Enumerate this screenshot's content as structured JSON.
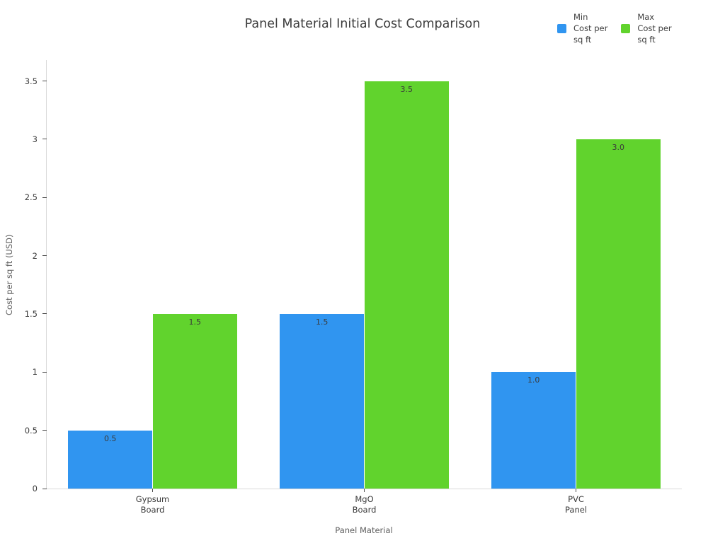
{
  "chart_data": {
    "type": "bar",
    "title": "Panel Material Initial Cost Comparison",
    "xlabel": "Panel Material",
    "ylabel": "Cost per sq ft (USD)",
    "categories": [
      "Gypsum\nBoard",
      "MgO\nBoard",
      "PVC\nPanel"
    ],
    "series": [
      {
        "name": "Min\nCost per\nsq ft",
        "color": "#3095f0",
        "values": [
          0.5,
          1.5,
          1.0
        ],
        "labels": [
          "0.5",
          "1.5",
          "1.0"
        ]
      },
      {
        "name": "Max\nCost per\nsq ft",
        "color": "#61d32d",
        "values": [
          1.5,
          3.5,
          3.0
        ],
        "labels": [
          "1.5",
          "3.5",
          "3.0"
        ]
      }
    ],
    "ylim": [
      0,
      3.68
    ],
    "yticks": {
      "values": [
        0,
        0.5,
        1,
        1.5,
        2,
        2.5,
        3,
        3.5
      ],
      "labels": [
        "0",
        "0.5",
        "1",
        "1.5",
        "2",
        "2.5",
        "3",
        "3.5"
      ]
    },
    "grid": false,
    "legend_position": "top-right",
    "bar_group_fraction": 0.8
  },
  "colors": {
    "min_series": "#3095f0",
    "max_series": "#61d32d",
    "spine": "#d9d9d9",
    "tick": "#4a4a4a",
    "title_text": "#3d3d3d",
    "axis_title_text": "#5f5f5f",
    "tick_label_text": "#3b3b3b",
    "background": "#ffffff"
  }
}
